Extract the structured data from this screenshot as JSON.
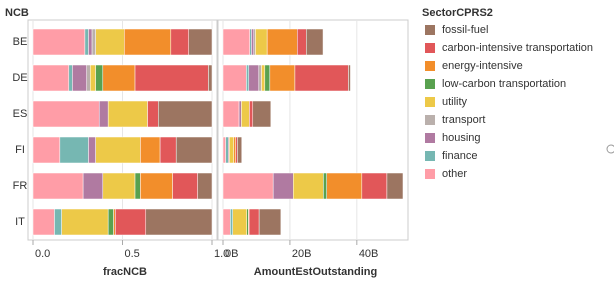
{
  "row_header": "NCB",
  "legend_title": "SectorCPRS2",
  "chart_data": [
    {
      "type": "bar",
      "x_label": "fracNCB",
      "categories": [
        "BE",
        "DE",
        "ES",
        "FI",
        "FR",
        "IT"
      ],
      "xlim": [
        0,
        1
      ],
      "xticks": [
        {
          "value": 0,
          "label": "0.0"
        },
        {
          "value": 0.5,
          "label": "0.5"
        },
        {
          "value": 1,
          "label": "1.0"
        }
      ],
      "grid": true,
      "series": [
        {
          "name": "other",
          "color": "#ff9da7",
          "values": [
            0.29,
            0.2,
            0.37,
            0.15,
            0.28,
            0.12
          ]
        },
        {
          "name": "finance",
          "color": "#76b7b2",
          "values": [
            0.02,
            0.02,
            0,
            0.16,
            0,
            0.04
          ]
        },
        {
          "name": "housing",
          "color": "#b07aa1",
          "values": [
            0.02,
            0.08,
            0.05,
            0.04,
            0.11,
            0
          ]
        },
        {
          "name": "transport",
          "color": "#bab0ac",
          "values": [
            0.02,
            0.02,
            0,
            0,
            0,
            0
          ]
        },
        {
          "name": "utility",
          "color": "#edc948",
          "values": [
            0.16,
            0.03,
            0.22,
            0.25,
            0.18,
            0.26
          ]
        },
        {
          "name": "low-carbon transportation",
          "color": "#59a14f",
          "values": [
            0,
            0.04,
            0,
            0,
            0.03,
            0.03
          ]
        },
        {
          "name": "energy-intensive",
          "color": "#f28e2b",
          "values": [
            0.26,
            0.18,
            0,
            0.11,
            0.18,
            0.01
          ]
        },
        {
          "name": "carbon-intensive transportation",
          "color": "#e15759",
          "values": [
            0.1,
            0.41,
            0.06,
            0.09,
            0.14,
            0.17
          ]
        },
        {
          "name": "fossil-fuel",
          "color": "#9c7561",
          "values": [
            0.13,
            0.02,
            0.3,
            0.2,
            0.08,
            0.37
          ]
        }
      ]
    },
    {
      "type": "bar",
      "x_label": "AmountEstOutstanding",
      "xlim": [
        0,
        55
      ],
      "xticks": [
        {
          "value": 0,
          "label": "0B"
        },
        {
          "value": 20,
          "label": "20B"
        },
        {
          "value": 40,
          "label": "40B"
        }
      ],
      "grid": true,
      "series": [
        {
          "values": [
            8,
            7,
            4.8,
            0.8,
            15,
            2.2
          ]
        },
        {
          "values": [
            0.5,
            0.7,
            0,
            0.8,
            0,
            0.7
          ]
        },
        {
          "values": [
            0.7,
            3,
            0.7,
            0.3,
            6,
            0
          ]
        },
        {
          "values": [
            0.5,
            0.8,
            0,
            0,
            0,
            0
          ]
        },
        {
          "values": [
            3.5,
            1,
            2.4,
            1.3,
            9,
            4.2
          ]
        },
        {
          "values": [
            0,
            1.5,
            0,
            0,
            1,
            0.5
          ]
        },
        {
          "values": [
            9,
            7.5,
            0,
            0.6,
            10.5,
            0.2
          ]
        },
        {
          "values": [
            2.7,
            16,
            1,
            0.5,
            7.5,
            3
          ]
        },
        {
          "values": [
            5,
            0.6,
            5.4,
            1.3,
            4.8,
            6.5
          ]
        }
      ]
    }
  ]
}
